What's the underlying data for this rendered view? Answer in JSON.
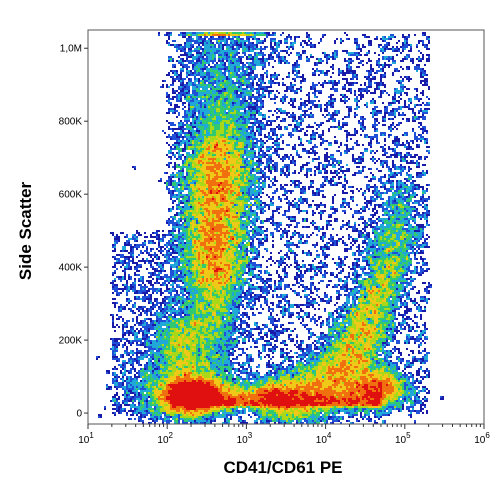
{
  "chart_data": {
    "type": "scatter",
    "title": "",
    "xlabel": "CD41/CD61 PE",
    "ylabel": "Side Scatter",
    "x_scale": "log",
    "x_range": [
      10,
      1000000
    ],
    "xticks": [
      {
        "value": 10,
        "base": "10",
        "exp": "1"
      },
      {
        "value": 100,
        "base": "10",
        "exp": "2"
      },
      {
        "value": 1000,
        "base": "10",
        "exp": "3"
      },
      {
        "value": 10000,
        "base": "10",
        "exp": "4"
      },
      {
        "value": 100000,
        "base": "10",
        "exp": "5"
      },
      {
        "value": 1000000,
        "base": "10",
        "exp": "6"
      }
    ],
    "y_scale": "linear",
    "y_range": [
      -30000,
      1050000
    ],
    "yticks": [
      {
        "value": 0,
        "label": "0"
      },
      {
        "value": 200000,
        "label": "200K"
      },
      {
        "value": 400000,
        "label": "400K"
      },
      {
        "value": 600000,
        "label": "600K"
      },
      {
        "value": 800000,
        "label": "800K"
      },
      {
        "value": 1000000,
        "label": "1,0M"
      }
    ],
    "grid": false,
    "legend": "none",
    "color_scale": [
      "#1a1aa8",
      "#2050d8",
      "#20a8d8",
      "#30c870",
      "#a8d818",
      "#f0c818",
      "#f07010",
      "#e01010"
    ],
    "populations": [
      {
        "x_center": 200,
        "y_center": 50000,
        "peak_density": "highest"
      },
      {
        "x_center": 700,
        "y_center": 550000,
        "peak_density": "medium"
      },
      {
        "x_center": 40000,
        "y_center": 80000,
        "peak_density": "medium-high"
      },
      {
        "x_center": 200,
        "y_center": 200000,
        "peak_density": "low"
      },
      {
        "x_center": 3000,
        "y_center": 30000,
        "peak_density": "medium"
      }
    ]
  }
}
